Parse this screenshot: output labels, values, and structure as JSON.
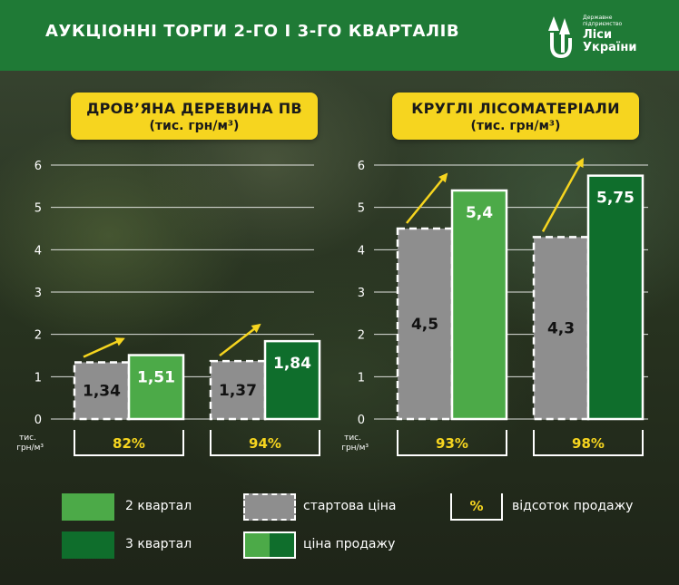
{
  "header": {
    "title": "АУКЦІОННІ ТОРГИ 2-ГО І 3-ГО КВАРТАЛІВ",
    "logo_small": "Державне підприємство",
    "logo_name_1": "Ліси",
    "logo_name_2": "України"
  },
  "colors": {
    "header_green": "#1f7a36",
    "q2_green": "#4caa48",
    "q3_green": "#0f6e2c",
    "start_gray": "#8e8e8e",
    "accent_yellow": "#f6d51f"
  },
  "chart_data": [
    {
      "type": "bar",
      "title_line1": "ДРОВ’ЯНА ДЕРЕВИНА ПВ",
      "title_line2": "(тис. грн/м³)",
      "ylim": [
        0,
        6
      ],
      "yticks": [
        "0",
        "1",
        "2",
        "3",
        "4",
        "5",
        "6"
      ],
      "unit_label_1": "тис.",
      "unit_label_2": "грн/м³",
      "groups": [
        {
          "start_label": "1,34",
          "start_value": 1.34,
          "sale_label": "1,51",
          "sale_value": 1.51,
          "sale_quarter": "2 квартал",
          "percent": "82%"
        },
        {
          "start_label": "1,37",
          "start_value": 1.37,
          "sale_label": "1,84",
          "sale_value": 1.84,
          "sale_quarter": "3 квартал",
          "percent": "94%"
        }
      ]
    },
    {
      "type": "bar",
      "title_line1": "КРУГЛІ ЛІСОМАТЕРІАЛИ",
      "title_line2": "(тис. грн/м³)",
      "ylim": [
        0,
        6
      ],
      "yticks": [
        "0",
        "1",
        "2",
        "3",
        "4",
        "5",
        "6"
      ],
      "unit_label_1": "тис.",
      "unit_label_2": "грн/м³",
      "groups": [
        {
          "start_label": "4,5",
          "start_value": 4.5,
          "sale_label": "5,4",
          "sale_value": 5.4,
          "sale_quarter": "2 квартал",
          "percent": "93%"
        },
        {
          "start_label": "4,3",
          "start_value": 4.3,
          "sale_label": "5,75",
          "sale_value": 5.75,
          "sale_quarter": "3 квартал",
          "percent": "98%"
        }
      ]
    }
  ],
  "legend": {
    "q2": "2 квартал",
    "q3": "3 квартал",
    "start_price": "стартова ціна",
    "sale_price": "ціна продажу",
    "percent_symbol": "%",
    "percent_label": "відсоток продажу"
  }
}
